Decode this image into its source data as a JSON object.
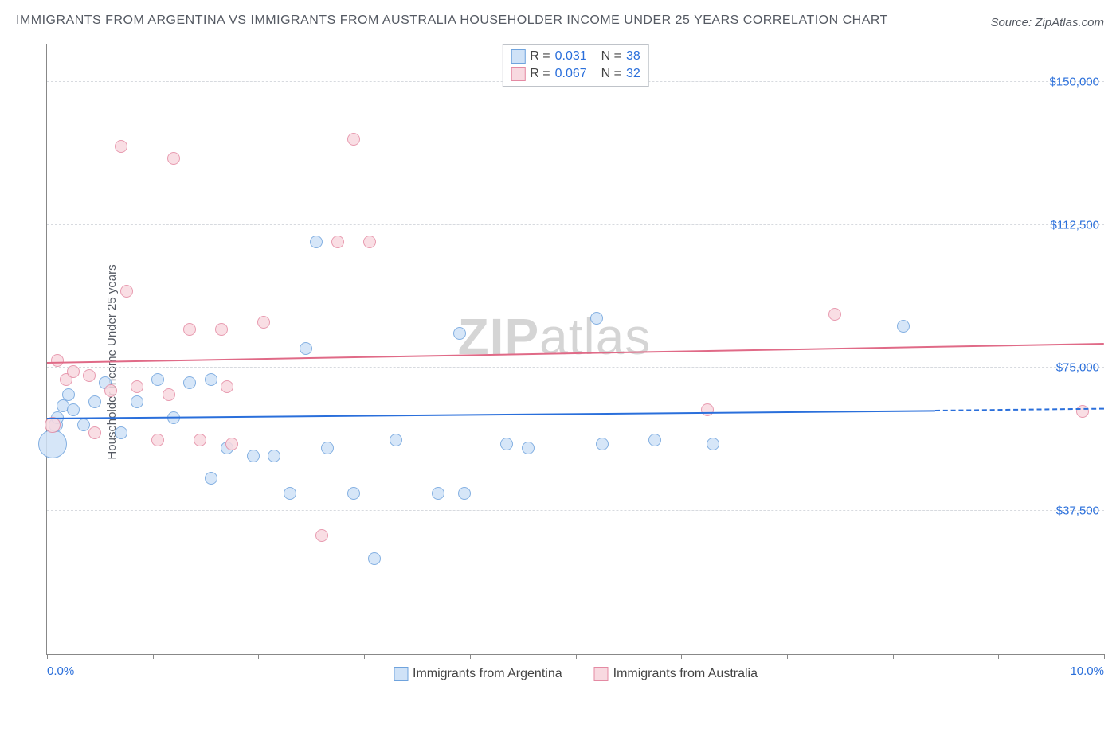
{
  "title": "IMMIGRANTS FROM ARGENTINA VS IMMIGRANTS FROM AUSTRALIA HOUSEHOLDER INCOME UNDER 25 YEARS CORRELATION CHART",
  "source": "Source: ZipAtlas.com",
  "ylabel": "Householder Income Under 25 years",
  "watermark_bold": "ZIP",
  "watermark_light": "atlas",
  "chart": {
    "type": "scatter",
    "xlim": [
      0,
      10
    ],
    "ylim": [
      0,
      160000
    ],
    "x_ticks": [
      0,
      1,
      2,
      3,
      4,
      5,
      6,
      7,
      8,
      9,
      10
    ],
    "x_tick_labels": {
      "0": "0.0%",
      "10": "10.0%"
    },
    "y_gridlines": [
      37500,
      75000,
      112500,
      150000
    ],
    "y_tick_labels": [
      "$37,500",
      "$75,000",
      "$112,500",
      "$150,000"
    ],
    "grid_color": "#d7dadf",
    "axis_color": "#888888",
    "background_color": "#ffffff",
    "tick_label_color": "#2a6fdb",
    "y_right_label_color": "#2a6fdb",
    "series": [
      {
        "name": "Immigrants from Argentina",
        "fill": "#cfe2f7",
        "stroke": "#6fa3dd",
        "line_color": "#2a6fdb",
        "R": "0.031",
        "N": "38",
        "trend": {
          "x0": 0,
          "y0": 62000,
          "x1": 8.4,
          "y1": 64000,
          "dash_x1": 10,
          "dash_y1": 64500
        },
        "points": [
          {
            "x": 0.05,
            "y": 55000,
            "r": 18
          },
          {
            "x": 0.08,
            "y": 60000,
            "r": 9
          },
          {
            "x": 0.1,
            "y": 62000,
            "r": 8
          },
          {
            "x": 0.15,
            "y": 65000,
            "r": 8
          },
          {
            "x": 0.2,
            "y": 68000,
            "r": 8
          },
          {
            "x": 0.25,
            "y": 64000,
            "r": 8
          },
          {
            "x": 0.35,
            "y": 60000,
            "r": 8
          },
          {
            "x": 0.45,
            "y": 66000,
            "r": 8
          },
          {
            "x": 0.55,
            "y": 71000,
            "r": 8
          },
          {
            "x": 0.7,
            "y": 58000,
            "r": 8
          },
          {
            "x": 0.85,
            "y": 66000,
            "r": 8
          },
          {
            "x": 1.05,
            "y": 72000,
            "r": 8
          },
          {
            "x": 1.2,
            "y": 62000,
            "r": 8
          },
          {
            "x": 1.35,
            "y": 71000,
            "r": 8
          },
          {
            "x": 1.55,
            "y": 72000,
            "r": 8
          },
          {
            "x": 1.55,
            "y": 46000,
            "r": 8
          },
          {
            "x": 1.7,
            "y": 54000,
            "r": 8
          },
          {
            "x": 1.95,
            "y": 52000,
            "r": 8
          },
          {
            "x": 2.15,
            "y": 52000,
            "r": 8
          },
          {
            "x": 2.3,
            "y": 42000,
            "r": 8
          },
          {
            "x": 2.45,
            "y": 80000,
            "r": 8
          },
          {
            "x": 2.55,
            "y": 108000,
            "r": 8
          },
          {
            "x": 2.65,
            "y": 54000,
            "r": 8
          },
          {
            "x": 2.9,
            "y": 42000,
            "r": 8
          },
          {
            "x": 3.1,
            "y": 25000,
            "r": 8
          },
          {
            "x": 3.3,
            "y": 56000,
            "r": 8
          },
          {
            "x": 3.7,
            "y": 42000,
            "r": 8
          },
          {
            "x": 3.9,
            "y": 84000,
            "r": 8
          },
          {
            "x": 3.95,
            "y": 42000,
            "r": 8
          },
          {
            "x": 4.35,
            "y": 55000,
            "r": 8
          },
          {
            "x": 4.55,
            "y": 54000,
            "r": 8
          },
          {
            "x": 5.2,
            "y": 88000,
            "r": 8
          },
          {
            "x": 5.25,
            "y": 55000,
            "r": 8
          },
          {
            "x": 5.75,
            "y": 56000,
            "r": 8
          },
          {
            "x": 6.3,
            "y": 55000,
            "r": 8
          },
          {
            "x": 8.1,
            "y": 86000,
            "r": 8
          }
        ]
      },
      {
        "name": "Immigrants from Australia",
        "fill": "#f8d9e0",
        "stroke": "#e48aa3",
        "line_color": "#e06a87",
        "R": "0.067",
        "N": "32",
        "trend": {
          "x0": 0,
          "y0": 76500,
          "x1": 10,
          "y1": 81500
        },
        "points": [
          {
            "x": 0.05,
            "y": 60000,
            "r": 10
          },
          {
            "x": 0.1,
            "y": 77000,
            "r": 8
          },
          {
            "x": 0.18,
            "y": 72000,
            "r": 8
          },
          {
            "x": 0.25,
            "y": 74000,
            "r": 8
          },
          {
            "x": 0.4,
            "y": 73000,
            "r": 8
          },
          {
            "x": 0.45,
            "y": 58000,
            "r": 8
          },
          {
            "x": 0.6,
            "y": 69000,
            "r": 8
          },
          {
            "x": 0.7,
            "y": 133000,
            "r": 8
          },
          {
            "x": 0.75,
            "y": 95000,
            "r": 8
          },
          {
            "x": 0.85,
            "y": 70000,
            "r": 8
          },
          {
            "x": 1.05,
            "y": 56000,
            "r": 8
          },
          {
            "x": 1.15,
            "y": 68000,
            "r": 8
          },
          {
            "x": 1.2,
            "y": 130000,
            "r": 8
          },
          {
            "x": 1.35,
            "y": 85000,
            "r": 8
          },
          {
            "x": 1.45,
            "y": 56000,
            "r": 8
          },
          {
            "x": 1.65,
            "y": 85000,
            "r": 8
          },
          {
            "x": 1.7,
            "y": 70000,
            "r": 8
          },
          {
            "x": 1.75,
            "y": 55000,
            "r": 8
          },
          {
            "x": 2.05,
            "y": 87000,
            "r": 8
          },
          {
            "x": 2.6,
            "y": 31000,
            "r": 8
          },
          {
            "x": 2.75,
            "y": 108000,
            "r": 8
          },
          {
            "x": 2.9,
            "y": 135000,
            "r": 8
          },
          {
            "x": 3.05,
            "y": 108000,
            "r": 8
          },
          {
            "x": 6.25,
            "y": 64000,
            "r": 8
          },
          {
            "x": 7.45,
            "y": 89000,
            "r": 8
          },
          {
            "x": 9.8,
            "y": 63500,
            "r": 8
          }
        ]
      }
    ]
  },
  "legend_stats_labels": {
    "R": "R =",
    "N": "N ="
  },
  "bottom_legend": [
    "Immigrants from Argentina",
    "Immigrants from Australia"
  ]
}
